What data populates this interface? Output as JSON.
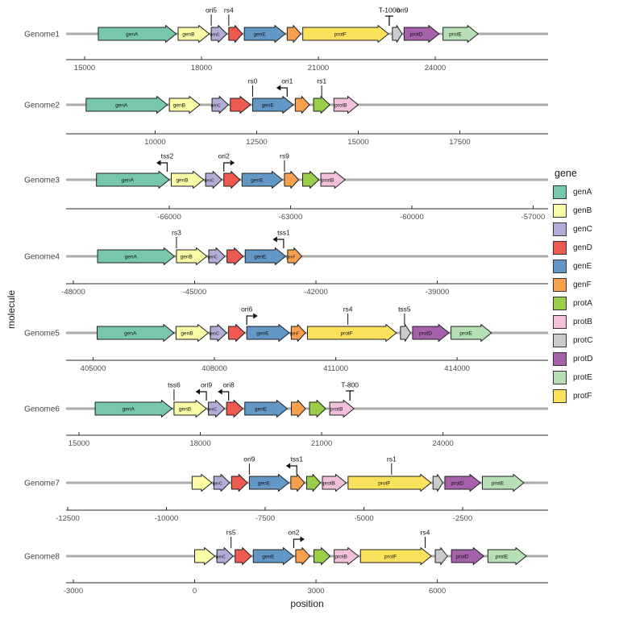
{
  "legend": {
    "title": "gene",
    "entries": [
      {
        "label": "genA",
        "color": "#77C7AD"
      },
      {
        "label": "genB",
        "color": "#FBFAA6"
      },
      {
        "label": "genC",
        "color": "#B3ACD7"
      },
      {
        "label": "genD",
        "color": "#EF5A50"
      },
      {
        "label": "genE",
        "color": "#6397C6"
      },
      {
        "label": "genF",
        "color": "#F8A04E"
      },
      {
        "label": "protA",
        "color": "#9ACD4A"
      },
      {
        "label": "protB",
        "color": "#F3C0DC"
      },
      {
        "label": "protC",
        "color": "#CBCBCB"
      },
      {
        "label": "protD",
        "color": "#A561A9"
      },
      {
        "label": "protE",
        "color": "#B6DFB5"
      },
      {
        "label": "protF",
        "color": "#FAE25D"
      }
    ]
  },
  "chart_data": {
    "type": "gene-arrow-map",
    "xlabel": "position",
    "ylabel": "molecule",
    "legend_position": "right",
    "molecule_line_color": "#ABABAB",
    "rows": [
      {
        "name": "Genome1",
        "xlim": [
          14524,
          26897
        ],
        "ticks": [
          15000,
          18000,
          21000,
          24000
        ],
        "genes": [
          {
            "gene": "genA",
            "start": 15350,
            "end": 17350,
            "label": "genA"
          },
          {
            "gene": "genB",
            "start": 17400,
            "end": 18200,
            "label": "genB"
          },
          {
            "gene": "genC",
            "start": 18250,
            "end": 18650,
            "label": "genC"
          },
          {
            "gene": "genD",
            "start": 18700,
            "end": 19050,
            "label": ""
          },
          {
            "gene": "genE",
            "start": 19100,
            "end": 20150,
            "label": "genE"
          },
          {
            "gene": "genF",
            "start": 20200,
            "end": 20550,
            "label": ""
          },
          {
            "gene": "protF",
            "start": 20600,
            "end": 22800,
            "label": "protF"
          },
          {
            "gene": "protC",
            "start": 22900,
            "end": 23150,
            "label": ""
          },
          {
            "gene": "protD",
            "start": 23200,
            "end": 24100,
            "label": "protD"
          },
          {
            "gene": "protE",
            "start": 24200,
            "end": 25100,
            "label": "protE"
          }
        ],
        "features": [
          {
            "label": "ori5",
            "position": 18250,
            "glyph": "tick"
          },
          {
            "label": "rs4",
            "position": 18700,
            "glyph": "tick"
          },
          {
            "label": "T-1000",
            "position": 22820,
            "glyph": "terminator"
          },
          {
            "label": "ori9",
            "position": 23160,
            "glyph": "label-only"
          }
        ]
      },
      {
        "name": "Genome2",
        "xlim": [
          7808,
          19672
        ],
        "ticks": [
          10000,
          12500,
          15000,
          17500
        ],
        "genes": [
          {
            "gene": "genA",
            "start": 8300,
            "end": 10300,
            "label": "genA"
          },
          {
            "gene": "genB",
            "start": 10350,
            "end": 11100,
            "label": "genB"
          },
          {
            "gene": "genC",
            "start": 11400,
            "end": 11800,
            "label": "genC"
          },
          {
            "gene": "genD",
            "start": 11850,
            "end": 12350,
            "label": ""
          },
          {
            "gene": "genE",
            "start": 12400,
            "end": 13400,
            "label": "genE"
          },
          {
            "gene": "genF",
            "start": 13450,
            "end": 13800,
            "label": ""
          },
          {
            "gene": "protA",
            "start": 13900,
            "end": 14300,
            "label": ""
          },
          {
            "gene": "protB",
            "start": 14400,
            "end": 15000,
            "label": "protB"
          }
        ],
        "features": [
          {
            "label": "rs0",
            "position": 12400,
            "glyph": "tick"
          },
          {
            "label": "ori1",
            "position": 13250,
            "glyph": "promoter-left"
          },
          {
            "label": "rs1",
            "position": 14100,
            "glyph": "tick"
          }
        ]
      },
      {
        "name": "Genome3",
        "xlim": [
          -68551,
          -56630
        ],
        "ticks": [
          -66000,
          -63000,
          -60000,
          -57000
        ],
        "genes": [
          {
            "gene": "genA",
            "start": -67800,
            "end": -66000,
            "label": "genA"
          },
          {
            "gene": "genB",
            "start": -65950,
            "end": -65150,
            "label": "genB"
          },
          {
            "gene": "genC",
            "start": -65100,
            "end": -64700,
            "label": "genC"
          },
          {
            "gene": "genD",
            "start": -64650,
            "end": -64250,
            "label": ""
          },
          {
            "gene": "genE",
            "start": -64200,
            "end": -63200,
            "label": "genE"
          },
          {
            "gene": "genF",
            "start": -63150,
            "end": -62800,
            "label": ""
          },
          {
            "gene": "protA",
            "start": -62700,
            "end": -62300,
            "label": ""
          },
          {
            "gene": "protB",
            "start": -62250,
            "end": -61650,
            "label": "protB"
          }
        ],
        "features": [
          {
            "label": "tss2",
            "position": -66050,
            "glyph": "promoter-left"
          },
          {
            "label": "ori2",
            "position": -64650,
            "glyph": "promoter-right"
          },
          {
            "label": "rs9",
            "position": -63150,
            "glyph": "tick"
          }
        ]
      },
      {
        "name": "Genome4",
        "xlim": [
          -48179,
          -36260
        ],
        "ticks": [
          -48000,
          -45000,
          -42000,
          -39000
        ],
        "genes": [
          {
            "gene": "genA",
            "start": -47400,
            "end": -45500,
            "label": "genA"
          },
          {
            "gene": "genB",
            "start": -45450,
            "end": -44700,
            "label": "genB"
          },
          {
            "gene": "genC",
            "start": -44650,
            "end": -44250,
            "label": "genC"
          },
          {
            "gene": "genD",
            "start": -44200,
            "end": -43800,
            "label": ""
          },
          {
            "gene": "genE",
            "start": -43750,
            "end": -42750,
            "label": "genE"
          },
          {
            "gene": "genF",
            "start": -42700,
            "end": -42350,
            "label": "genF"
          }
        ],
        "features": [
          {
            "label": "rs3",
            "position": -45450,
            "glyph": "tick"
          },
          {
            "label": "tss1",
            "position": -42800,
            "glyph": "promoter-left"
          }
        ]
      },
      {
        "name": "Genome5",
        "xlim": [
          404332,
          416250
        ],
        "ticks": [
          405000,
          408000,
          411000,
          414000
        ],
        "genes": [
          {
            "gene": "genA",
            "start": 405100,
            "end": 407000,
            "label": "genA"
          },
          {
            "gene": "genB",
            "start": 407050,
            "end": 407850,
            "label": "genB"
          },
          {
            "gene": "genC",
            "start": 407900,
            "end": 408300,
            "label": "genC"
          },
          {
            "gene": "genD",
            "start": 408350,
            "end": 408750,
            "label": ""
          },
          {
            "gene": "genE",
            "start": 408800,
            "end": 409850,
            "label": "genE"
          },
          {
            "gene": "genF",
            "start": 409900,
            "end": 410250,
            "label": "genF"
          },
          {
            "gene": "protF",
            "start": 410300,
            "end": 412500,
            "label": "protF"
          },
          {
            "gene": "protC",
            "start": 412600,
            "end": 412850,
            "label": ""
          },
          {
            "gene": "protD",
            "start": 412900,
            "end": 413800,
            "label": "protD"
          },
          {
            "gene": "protE",
            "start": 413850,
            "end": 414850,
            "label": "protE"
          }
        ],
        "features": [
          {
            "label": "ori6",
            "position": 408800,
            "glyph": "promoter-right"
          },
          {
            "label": "rs4",
            "position": 411300,
            "glyph": "tick"
          },
          {
            "label": "tss5",
            "position": 412700,
            "glyph": "tick"
          }
        ]
      },
      {
        "name": "Genome6",
        "xlim": [
          14681,
          26599
        ],
        "ticks": [
          15000,
          18000,
          21000,
          24000
        ],
        "genes": [
          {
            "gene": "genA",
            "start": 15400,
            "end": 17300,
            "label": "genA"
          },
          {
            "gene": "genB",
            "start": 17350,
            "end": 18150,
            "label": "genB"
          },
          {
            "gene": "genC",
            "start": 18200,
            "end": 18600,
            "label": "genC"
          },
          {
            "gene": "genD",
            "start": 18650,
            "end": 19050,
            "label": ""
          },
          {
            "gene": "genE",
            "start": 19100,
            "end": 20150,
            "label": "genE"
          },
          {
            "gene": "genF",
            "start": 20250,
            "end": 20600,
            "label": ""
          },
          {
            "gene": "protA",
            "start": 20700,
            "end": 21100,
            "label": ""
          },
          {
            "gene": "protB",
            "start": 21200,
            "end": 21800,
            "label": "protB"
          }
        ],
        "features": [
          {
            "label": "tss6",
            "position": 17350,
            "glyph": "tick"
          },
          {
            "label": "ori9",
            "position": 18150,
            "glyph": "promoter-left"
          },
          {
            "label": "ori8",
            "position": 18700,
            "glyph": "promoter-left"
          },
          {
            "label": "T-800",
            "position": 21700,
            "glyph": "terminator"
          }
        ]
      },
      {
        "name": "Genome7",
        "xlim": [
          -12541,
          -336
        ],
        "ticks": [
          -12500,
          -10000,
          -7500,
          -5000,
          -2500
        ],
        "genes": [
          {
            "gene": "genB",
            "start": -9350,
            "end": -8850,
            "label": ""
          },
          {
            "gene": "genC",
            "start": -8800,
            "end": -8400,
            "label": "genC"
          },
          {
            "gene": "genD",
            "start": -8350,
            "end": -7950,
            "label": ""
          },
          {
            "gene": "genE",
            "start": -7900,
            "end": -6900,
            "label": "genE"
          },
          {
            "gene": "genF",
            "start": -6850,
            "end": -6500,
            "label": ""
          },
          {
            "gene": "protA",
            "start": -6450,
            "end": -6100,
            "label": ""
          },
          {
            "gene": "protB",
            "start": -6050,
            "end": -5450,
            "label": "protB"
          },
          {
            "gene": "protF",
            "start": -5400,
            "end": -3300,
            "label": "protF"
          },
          {
            "gene": "protC",
            "start": -3250,
            "end": -3000,
            "label": ""
          },
          {
            "gene": "protD",
            "start": -2950,
            "end": -2050,
            "label": "protD"
          },
          {
            "gene": "protE",
            "start": -2000,
            "end": -950,
            "label": "protE"
          }
        ],
        "features": [
          {
            "label": "ori9",
            "position": -7900,
            "glyph": "tick"
          },
          {
            "label": "tss1",
            "position": -6700,
            "glyph": "promoter-left"
          },
          {
            "label": "rs1",
            "position": -4300,
            "glyph": "tick"
          }
        ]
      },
      {
        "name": "Genome8",
        "xlim": [
          -3179,
          8739
        ],
        "ticks": [
          -3000,
          0,
          3000,
          6000
        ],
        "genes": [
          {
            "gene": "genB",
            "start": 0,
            "end": 500,
            "label": ""
          },
          {
            "gene": "genC",
            "start": 550,
            "end": 950,
            "label": "genC"
          },
          {
            "gene": "genD",
            "start": 1000,
            "end": 1400,
            "label": ""
          },
          {
            "gene": "genE",
            "start": 1450,
            "end": 2450,
            "label": "genE"
          },
          {
            "gene": "genF",
            "start": 2500,
            "end": 2850,
            "label": ""
          },
          {
            "gene": "protA",
            "start": 2950,
            "end": 3350,
            "label": ""
          },
          {
            "gene": "protB",
            "start": 3450,
            "end": 4050,
            "label": "protB"
          },
          {
            "gene": "protF",
            "start": 4100,
            "end": 5850,
            "label": "protF"
          },
          {
            "gene": "protC",
            "start": 5950,
            "end": 6250,
            "label": ""
          },
          {
            "gene": "protD",
            "start": 6350,
            "end": 7150,
            "label": "protD"
          },
          {
            "gene": "protE",
            "start": 7250,
            "end": 8200,
            "label": "protE"
          }
        ],
        "features": [
          {
            "label": "rs5",
            "position": 900,
            "glyph": "tick"
          },
          {
            "label": "ori2",
            "position": 2450,
            "glyph": "promoter-right"
          },
          {
            "label": "rs4",
            "position": 5700,
            "glyph": "tick"
          }
        ]
      }
    ]
  }
}
